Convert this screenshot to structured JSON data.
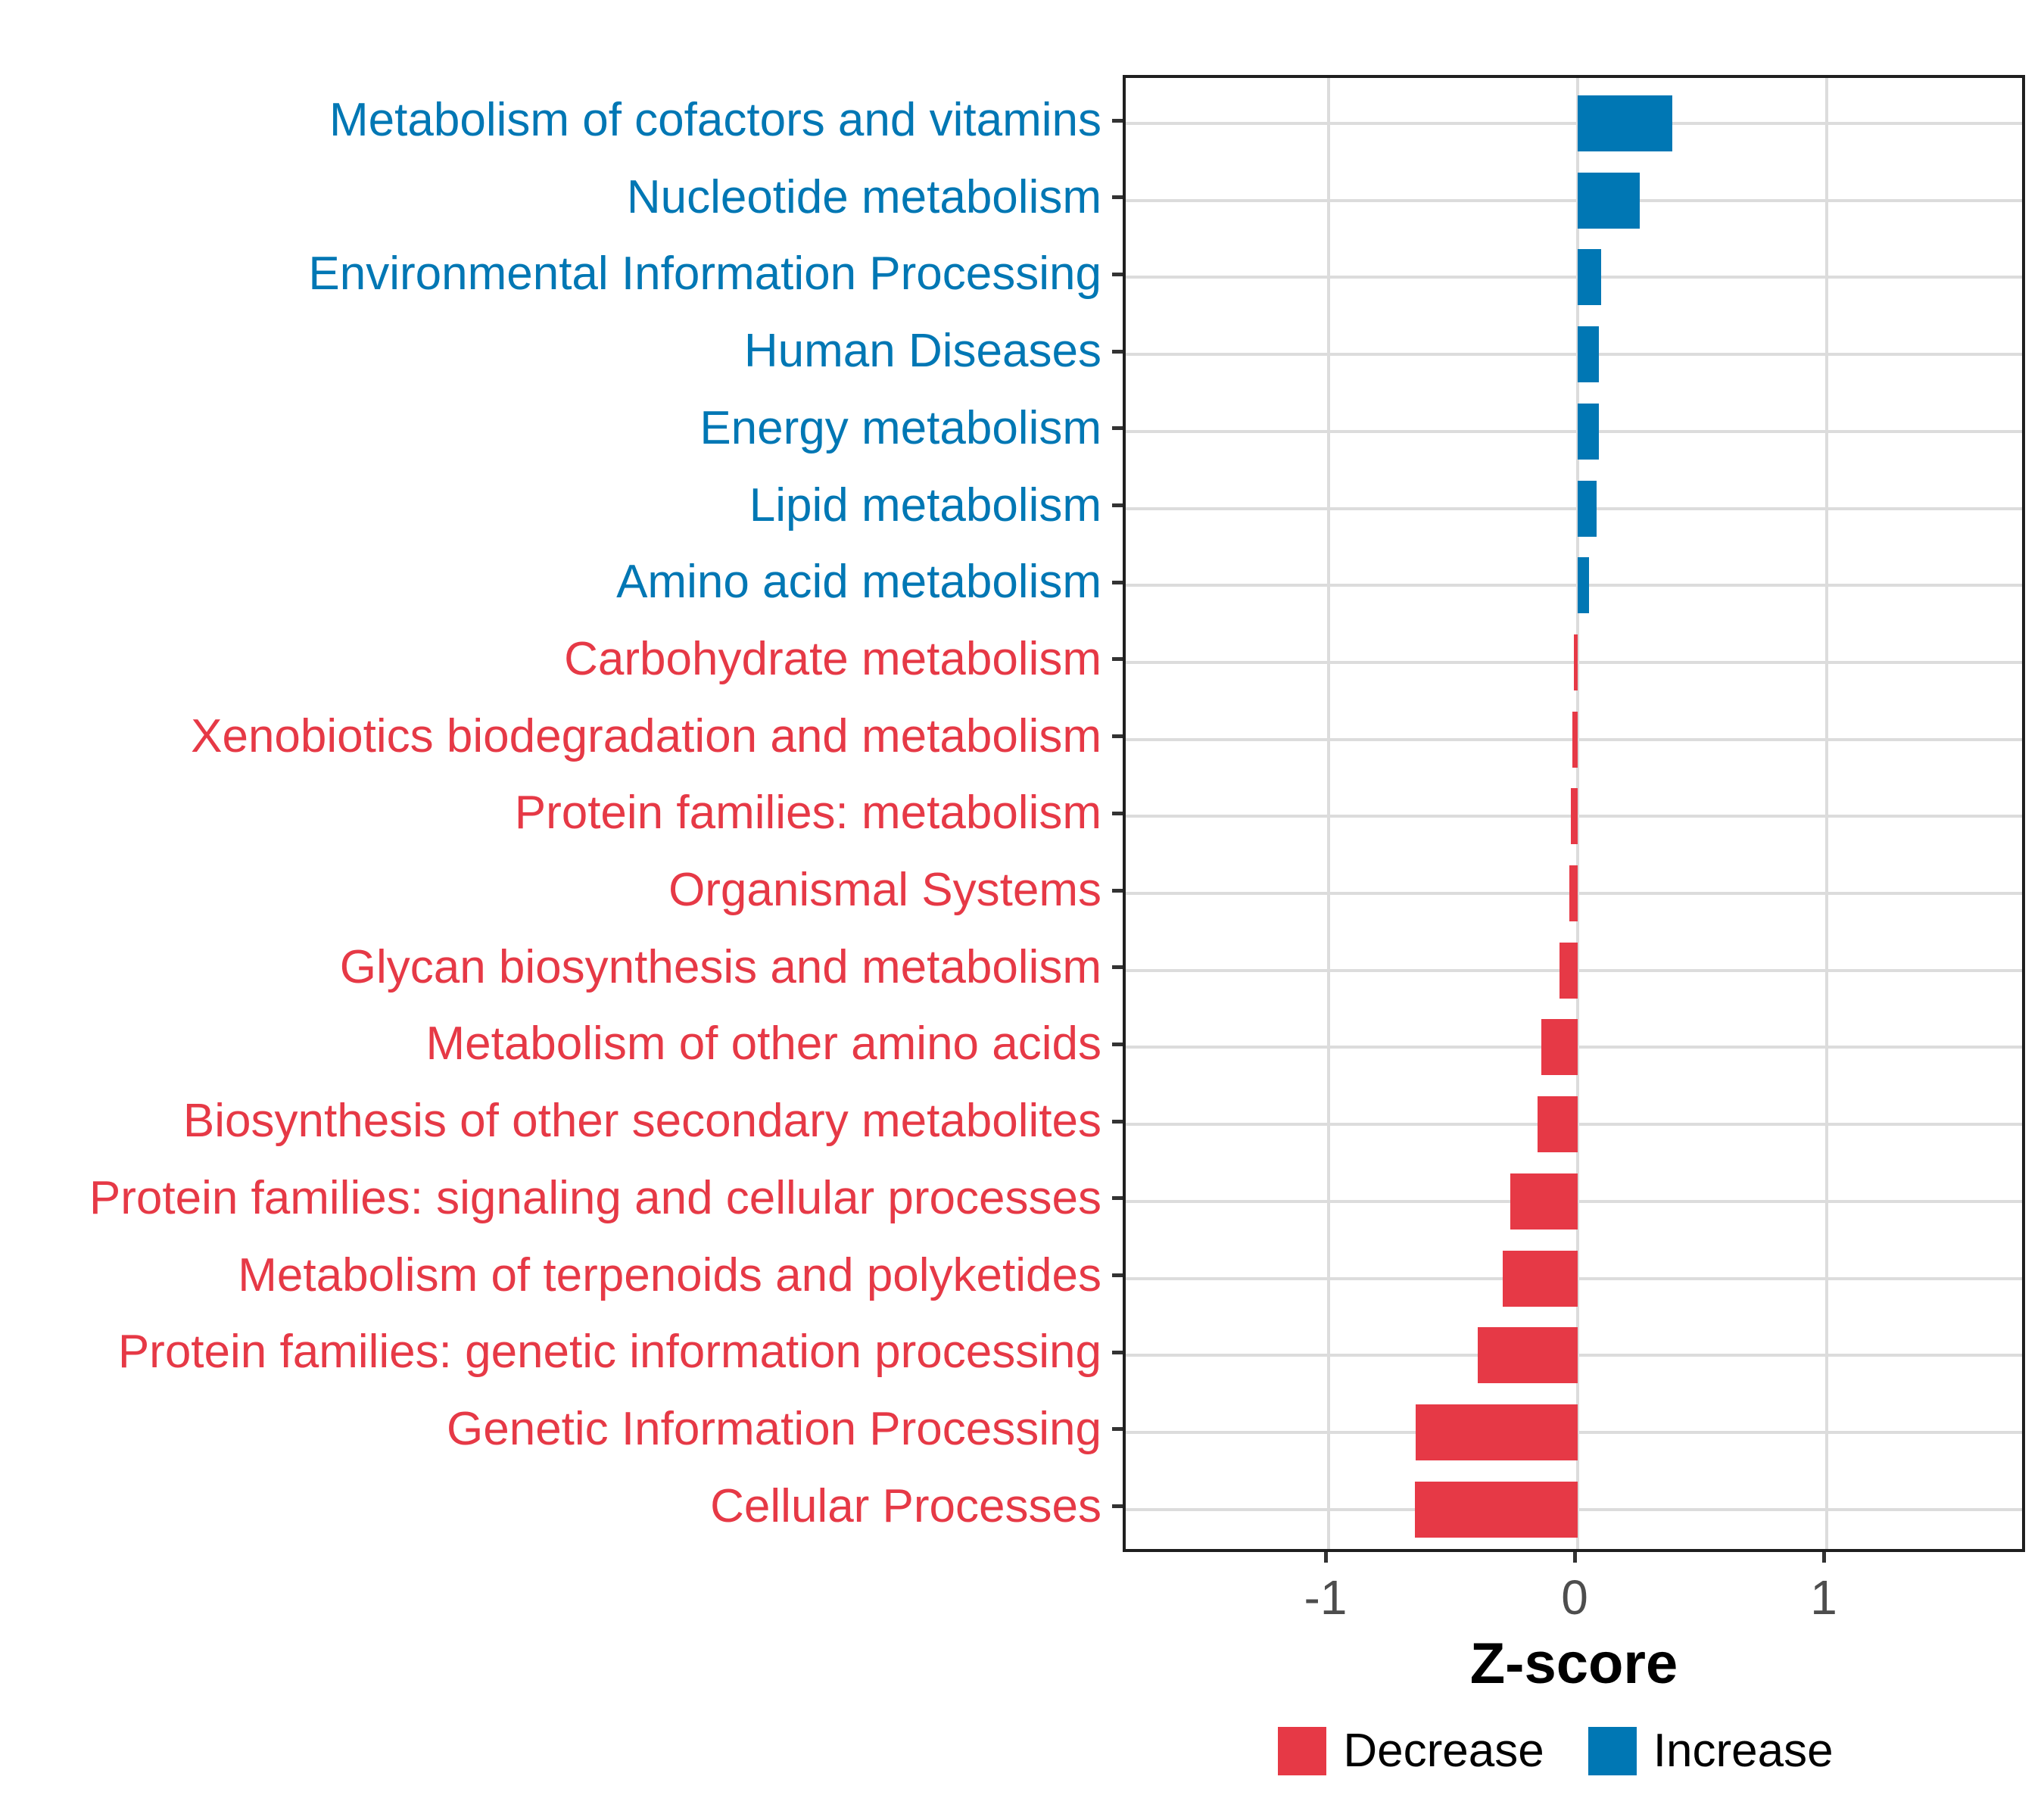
{
  "chart_data": {
    "type": "bar",
    "orientation": "horizontal",
    "title": "",
    "xlabel": "Z-score",
    "ylabel": "",
    "xlim": [
      -1.82,
      1.81
    ],
    "grid": "major-only",
    "legend_position": "bottom",
    "x_ticks": [
      {
        "value": -1,
        "label": "-1"
      },
      {
        "value": 0,
        "label": "0"
      },
      {
        "value": 1,
        "label": "1"
      }
    ],
    "categories": [
      "Metabolism of cofactors and vitamins",
      "Nucleotide metabolism",
      "Environmental Information Processing",
      "Human Diseases",
      "Energy metabolism",
      "Lipid metabolism",
      "Amino acid metabolism",
      "Carbohydrate metabolism",
      "Xenobiotics biodegradation and metabolism",
      "Protein families: metabolism",
      "Organismal Systems",
      "Glycan biosynthesis and metabolism",
      "Metabolism of other amino acids",
      "Biosynthesis of other secondary metabolites",
      "Protein families: signaling and cellular processes",
      "Metabolism of terpenoids and polyketides",
      "Protein families: genetic information processing",
      "Genetic Information Processing",
      "Cellular Processes"
    ],
    "values": [
      0.38,
      0.25,
      0.095,
      0.085,
      0.085,
      0.075,
      0.045,
      -0.015,
      -0.022,
      -0.028,
      -0.032,
      -0.073,
      -0.145,
      -0.16,
      -0.27,
      -0.3,
      -0.4,
      -0.65,
      -0.655
    ],
    "groups": [
      "increase",
      "increase",
      "increase",
      "increase",
      "increase",
      "increase",
      "increase",
      "decrease",
      "decrease",
      "decrease",
      "decrease",
      "decrease",
      "decrease",
      "decrease",
      "decrease",
      "decrease",
      "decrease",
      "decrease",
      "decrease"
    ],
    "colors": {
      "increase": "#0077B4",
      "decrease": "#E63946"
    },
    "legend": [
      {
        "key": "decrease",
        "label": "Decrease",
        "color": "#E63946"
      },
      {
        "key": "increase",
        "label": "Increase",
        "color": "#0077B4"
      }
    ]
  }
}
